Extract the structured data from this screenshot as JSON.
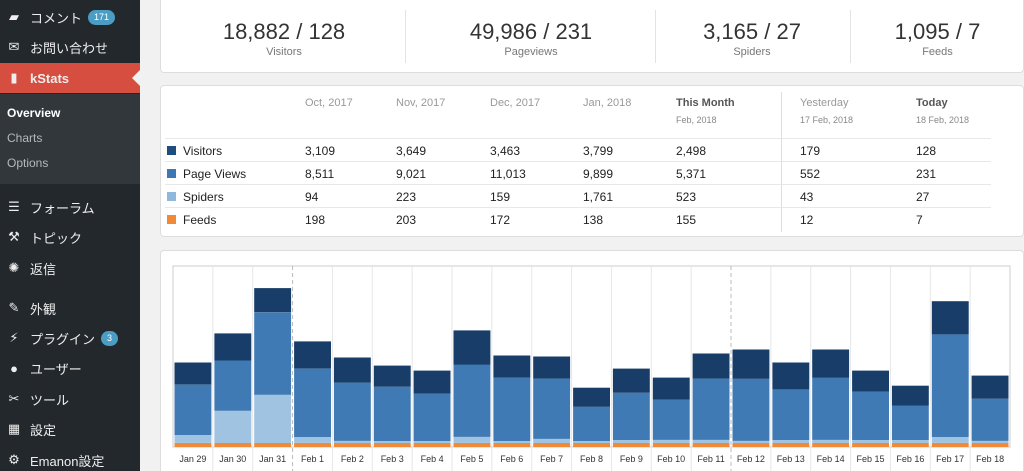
{
  "sidebar": {
    "items": [
      {
        "name": "menu-comments",
        "icon": "comment-icon",
        "glyph": "▰",
        "label": "コメント",
        "badge": "171",
        "top": 2
      },
      {
        "name": "menu-contact",
        "icon": "mail-icon",
        "glyph": "✉",
        "label": "お問い合わせ",
        "badge": null,
        "top": 32
      },
      {
        "name": "menu-kstats",
        "icon": "stats-icon",
        "glyph": "▮",
        "label": "kStats",
        "badge": null,
        "top": 63,
        "active": true
      },
      {
        "name": "menu-forum",
        "icon": "forum-icon",
        "glyph": "☰",
        "label": "フォーラム",
        "badge": null,
        "top": 192
      },
      {
        "name": "menu-topic",
        "icon": "topic-icon",
        "glyph": "⚒",
        "label": "トピック",
        "badge": null,
        "top": 222
      },
      {
        "name": "menu-reply",
        "icon": "reply-icon",
        "glyph": "✺",
        "label": "返信",
        "badge": null,
        "top": 253
      },
      {
        "name": "menu-appearance",
        "icon": "brush-icon",
        "glyph": "✎",
        "label": "外観",
        "badge": null,
        "top": 293
      },
      {
        "name": "menu-plugins",
        "icon": "plugin-icon",
        "glyph": "⚡",
        "label": "プラグイン",
        "badge": "3",
        "top": 323
      },
      {
        "name": "menu-users",
        "icon": "user-icon",
        "glyph": "●",
        "label": "ユーザー",
        "badge": null,
        "top": 353
      },
      {
        "name": "menu-tools",
        "icon": "wrench-icon",
        "glyph": "✂",
        "label": "ツール",
        "badge": null,
        "top": 384
      },
      {
        "name": "menu-settings",
        "icon": "settings-icon",
        "glyph": "▦",
        "label": "設定",
        "badge": null,
        "top": 414
      },
      {
        "name": "menu-emanon",
        "icon": "gear-icon",
        "glyph": "⚙",
        "label": "Emanon設定",
        "badge": null,
        "top": 445
      }
    ],
    "submenu": [
      {
        "label": "Overview",
        "current": true
      },
      {
        "label": "Charts",
        "current": false
      },
      {
        "label": "Options",
        "current": false
      }
    ]
  },
  "summary": [
    {
      "value": "18,882 / 128",
      "label": "Visitors"
    },
    {
      "value": "49,986 / 231",
      "label": "Pageviews"
    },
    {
      "value": "3,165 / 27",
      "label": "Spiders"
    },
    {
      "value": "1,095 / 7",
      "label": "Feeds"
    }
  ],
  "table": {
    "columns": [
      {
        "label": "Oct, 2017",
        "sub": ""
      },
      {
        "label": "Nov, 2017",
        "sub": ""
      },
      {
        "label": "Dec, 2017",
        "sub": ""
      },
      {
        "label": "Jan, 2018",
        "sub": ""
      },
      {
        "label": "This Month",
        "sub": "Feb, 2018"
      },
      {
        "label": "Yesterday",
        "sub": "17 Feb, 2018"
      },
      {
        "label": "Today",
        "sub": "18 Feb, 2018"
      }
    ],
    "rows": [
      {
        "label": "Visitors",
        "color": "#1d4e7e",
        "values": [
          "3,109",
          "3,649",
          "3,463",
          "3,799",
          "2,498",
          "179",
          "128"
        ]
      },
      {
        "label": "Page Views",
        "color": "#3d78b4",
        "values": [
          "8,511",
          "9,021",
          "11,013",
          "9,899",
          "5,371",
          "552",
          "231"
        ]
      },
      {
        "label": "Spiders",
        "color": "#8fb8dc",
        "values": [
          "94",
          "223",
          "159",
          "1,761",
          "523",
          "43",
          "27"
        ]
      },
      {
        "label": "Feeds",
        "color": "#f08a38",
        "values": [
          "198",
          "203",
          "172",
          "138",
          "155",
          "12",
          "7"
        ]
      }
    ]
  },
  "chart_data": {
    "type": "bar",
    "stacked": true,
    "categories": [
      "Jan 29",
      "Jan 30",
      "Jan 31",
      "Feb 1",
      "Feb 2",
      "Feb 3",
      "Feb 4",
      "Feb 5",
      "Feb 6",
      "Feb 7",
      "Feb 8",
      "Feb 9",
      "Feb 10",
      "Feb 11",
      "Feb 12",
      "Feb 13",
      "Feb 14",
      "Feb 15",
      "Feb 16",
      "Feb 17",
      "Feb 18"
    ],
    "series": [
      {
        "name": "Feeds",
        "color": "#f08a38",
        "values": [
          4,
          4,
          4,
          4,
          4,
          4,
          4,
          4,
          4,
          4,
          4,
          4,
          4,
          4,
          4,
          4,
          4,
          4,
          4,
          4,
          4
        ]
      },
      {
        "name": "Spiders",
        "color": "#9fc3e0",
        "values": [
          8,
          32,
          48,
          6,
          2,
          2,
          2,
          6,
          2,
          4,
          2,
          3,
          3,
          3,
          2,
          3,
          3,
          3,
          3,
          6,
          2
        ]
      },
      {
        "name": "Page Views",
        "color": "#3f7ab5",
        "values": [
          50,
          50,
          82,
          68,
          58,
          54,
          47,
          72,
          63,
          60,
          34,
          47,
          40,
          61,
          62,
          50,
          62,
          48,
          34,
          102,
          42
        ]
      },
      {
        "name": "Visitors",
        "color": "#173d68",
        "values": [
          22,
          27,
          24,
          27,
          25,
          21,
          23,
          34,
          22,
          22,
          19,
          24,
          22,
          25,
          29,
          27,
          28,
          21,
          20,
          33,
          23
        ]
      }
    ],
    "ylim": [
      0,
      180
    ],
    "grid": true,
    "month_dividers_after": [
      "Jan 31",
      "Feb 11"
    ]
  }
}
